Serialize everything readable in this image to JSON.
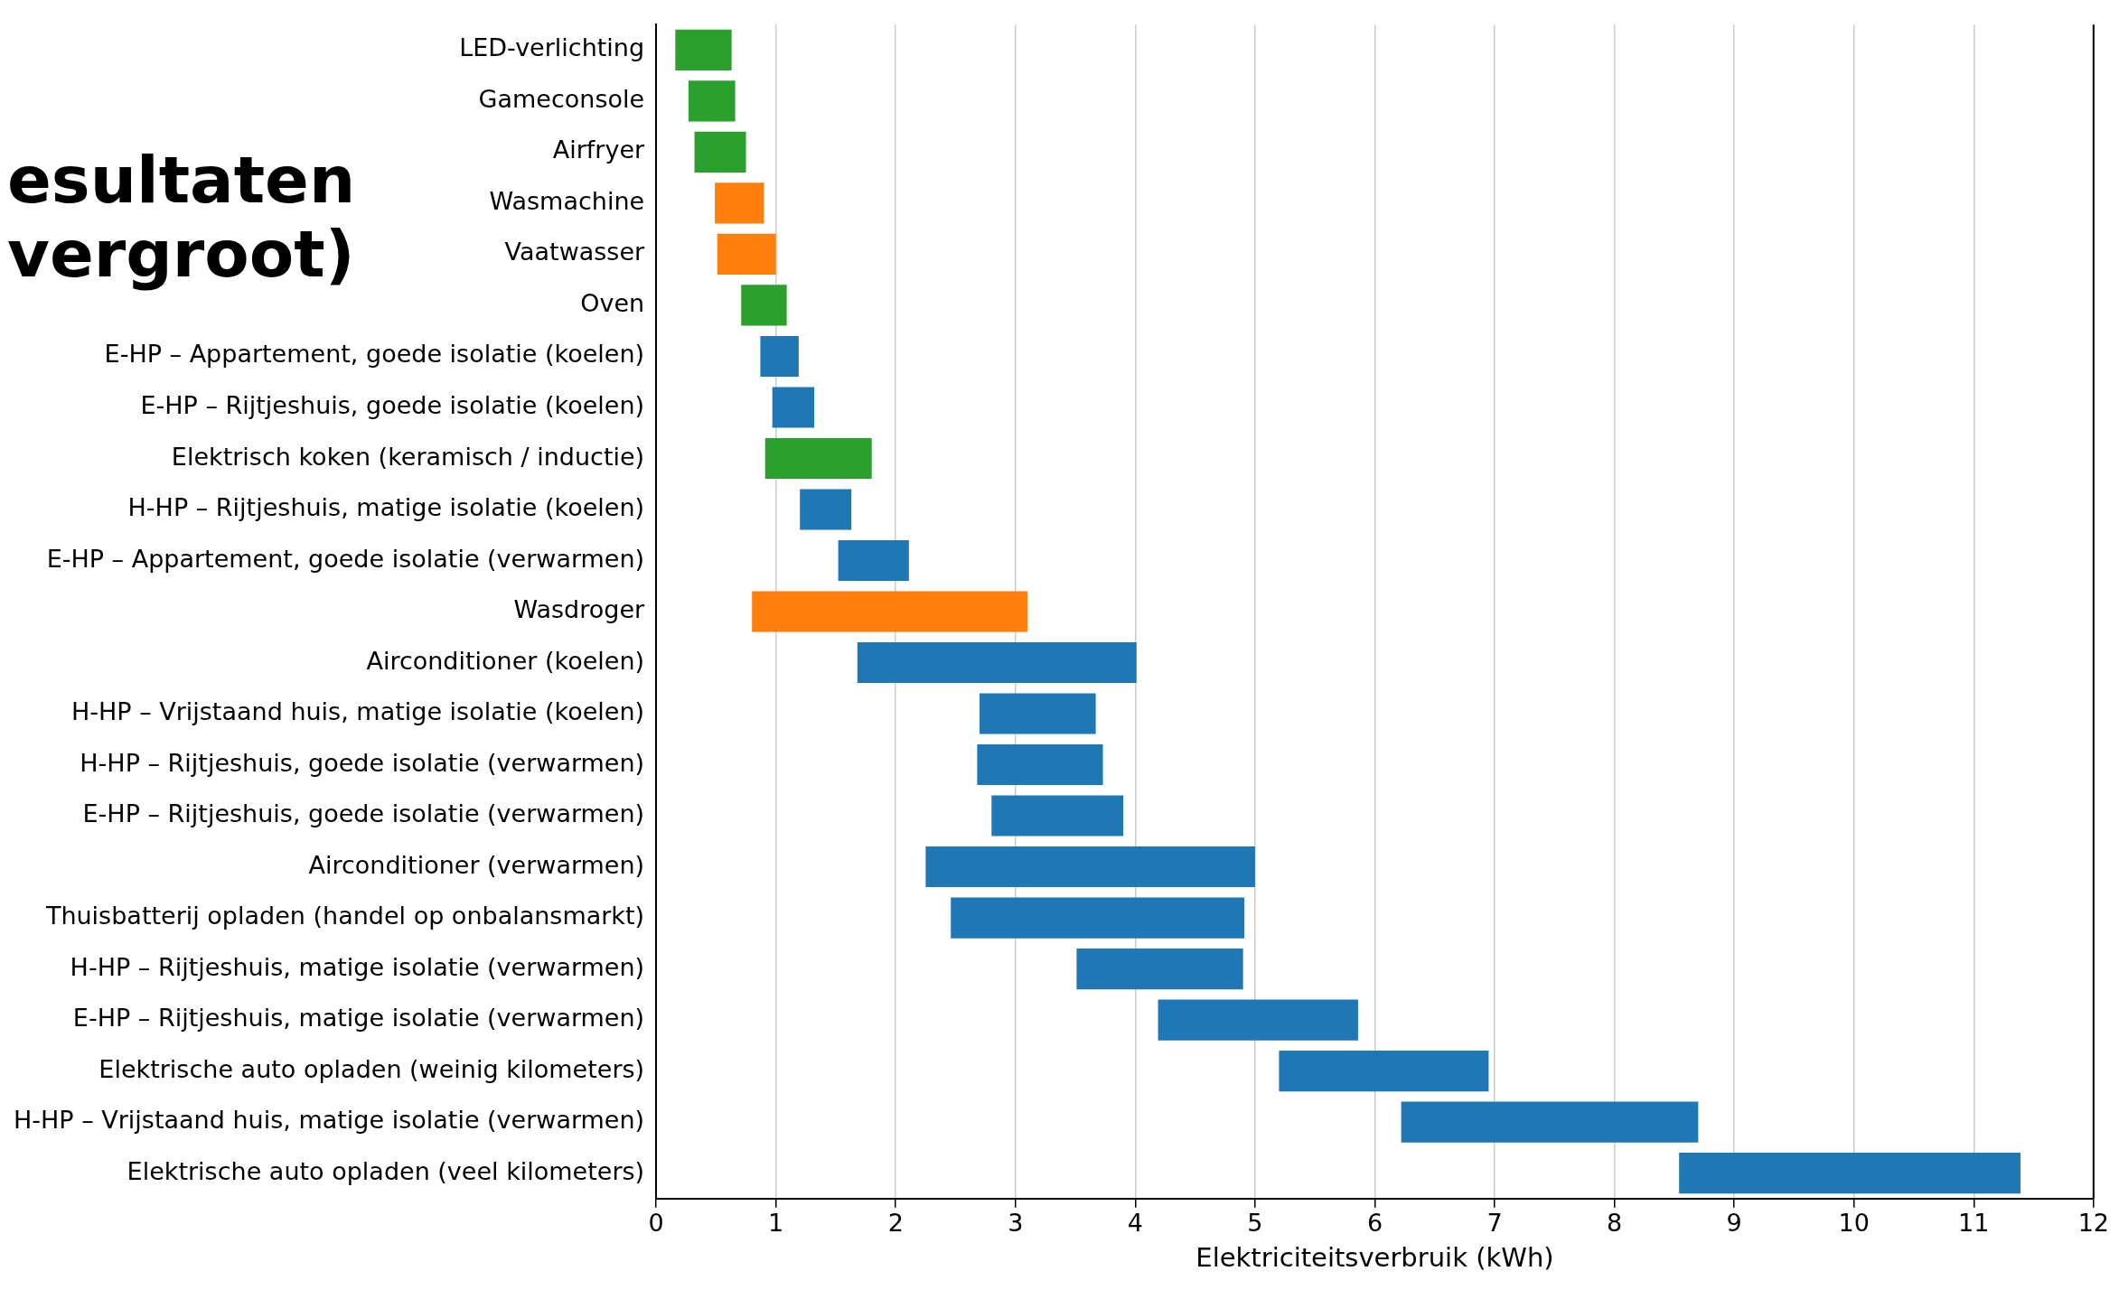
{
  "chart_data": {
    "type": "bar",
    "orientation": "horizontal",
    "xlabel": "Elektriciteitsverbruik (kWh)",
    "annotations": [
      "esultaten",
      "vergroot)"
    ],
    "categories": [
      "LED-verlichting",
      "Gameconsole",
      "Airfryer",
      "Wasmachine",
      "Vaatwasser",
      "Oven",
      "E-HP – Appartement, goede isolatie (koelen)",
      "E-HP – Rijtjeshuis, goede isolatie (koelen)",
      "Elektrisch koken (keramisch / inductie)",
      "H-HP – Rijtjeshuis, matige isolatie (koelen)",
      "E-HP – Appartement, goede isolatie (verwarmen)",
      "Wasdroger",
      "Airconditioner (koelen)",
      "H-HP – Vrijstaand huis, matige isolatie (koelen)",
      "H-HP – Rijtjeshuis, goede isolatie (verwarmen)",
      "E-HP – Rijtjeshuis, goede isolatie (verwarmen)",
      "Airconditioner (verwarmen)",
      "Thuisbatterij opladen (handel op onbalansmarkt)",
      "H-HP – Rijtjeshuis, matige isolatie (verwarmen)",
      "E-HP – Rijtjeshuis, matige isolatie (verwarmen)",
      "Elektrische auto opladen (weinig kilometers)",
      "H-HP – Vrijstaand huis, matige isolatie (verwarmen)",
      "Elektrische auto opladen (veel kilometers)"
    ],
    "base": [
      0.16,
      0.27,
      0.32,
      0.49,
      0.51,
      0.71,
      0.87,
      0.97,
      0.91,
      1.2,
      1.52,
      0.8,
      1.68,
      2.7,
      2.68,
      2.8,
      2.25,
      2.46,
      3.51,
      4.19,
      5.2,
      6.22,
      8.54
    ],
    "values": [
      0.47,
      0.39,
      0.43,
      0.41,
      0.49,
      0.38,
      0.32,
      0.35,
      0.89,
      0.43,
      0.59,
      2.3,
      2.33,
      0.97,
      1.05,
      1.1,
      2.75,
      2.45,
      1.39,
      1.67,
      1.75,
      2.48,
      2.85
    ],
    "colors": [
      "#2ca02c",
      "#2ca02c",
      "#2ca02c",
      "#ff7f0e",
      "#ff7f0e",
      "#2ca02c",
      "#1f77b4",
      "#1f77b4",
      "#2ca02c",
      "#1f77b4",
      "#1f77b4",
      "#ff7f0e",
      "#1f77b4",
      "#1f77b4",
      "#1f77b4",
      "#1f77b4",
      "#1f77b4",
      "#1f77b4",
      "#1f77b4",
      "#1f77b4",
      "#1f77b4",
      "#1f77b4",
      "#1f77b4"
    ],
    "xlim": [
      0,
      12
    ],
    "xticks": [
      0,
      1,
      2,
      3,
      4,
      5,
      6,
      7,
      8,
      9,
      10,
      11,
      12
    ],
    "grid": "x",
    "legend": false
  }
}
